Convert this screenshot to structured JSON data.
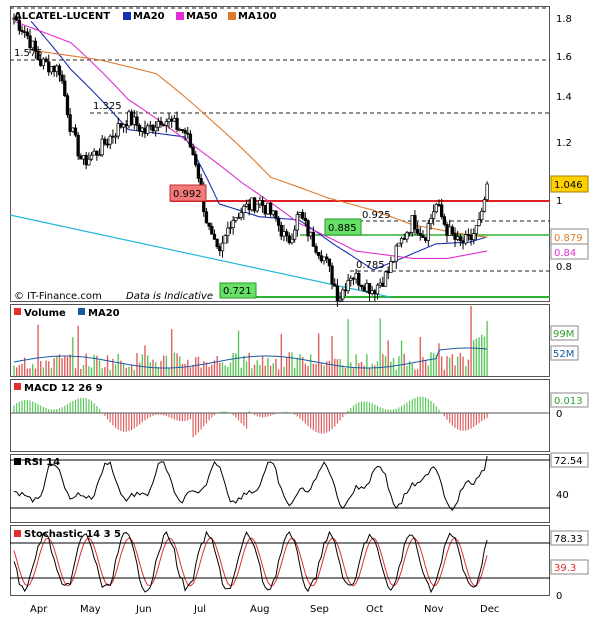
{
  "colors": {
    "ma20": "#1a2fb0",
    "ma50": "#e030d0",
    "ma100": "#e07a2a",
    "candle_up": "#ffffff",
    "candle_down": "#000000",
    "resistance": "#e02020",
    "support": "#30b030",
    "trendline": "#20b8d8",
    "volume_up": "#5ac85a",
    "volume_down": "#e06060",
    "stoch_k": "#000000",
    "stoch_d": "#e03030"
  },
  "main_panel": {
    "legend": {
      "ticker": "ALCATEL-LUCENT",
      "ma20": "MA20",
      "ma50": "MA50",
      "ma100": "MA100"
    },
    "watermark": "© IT-Finance.com",
    "disclaimer": "Data is Indicative",
    "y_ticks": [
      "1.8",
      "1.6",
      "1.4",
      "1.2",
      "1",
      "0.8"
    ],
    "annotations": {
      "level_1575": "1.575",
      "level_1325": "1.325",
      "level_0925": "0.925",
      "level_0785": "0.785",
      "box_0992": "0.992",
      "box_0885": "0.885",
      "box_0721": "0.721"
    },
    "right_labels": {
      "last": "1.046",
      "ma100": "0.879",
      "ma50": "0.84"
    }
  },
  "volume_panel": {
    "legend": {
      "volume": "Volume",
      "ma20": "MA20"
    },
    "right_labels": {
      "volume": "99M",
      "ma20": "52M"
    }
  },
  "macd_panel": {
    "legend": "MACD 12 26 9",
    "right_labels": {
      "value": "0.013",
      "zero": "0"
    }
  },
  "rsi_panel": {
    "legend": "RSI 14",
    "right_labels": {
      "value": "72.54",
      "mid": "40"
    }
  },
  "stoch_panel": {
    "legend": "Stochastic 14 3 5",
    "right_labels": {
      "k": "78.33",
      "d": "39.3",
      "zero": "0"
    }
  },
  "x_axis": {
    "months": [
      "Apr",
      "May",
      "Jun",
      "Jul",
      "Aug",
      "Sep",
      "Oct",
      "Nov",
      "Dec"
    ]
  },
  "chart_data": {
    "type": "candlestick",
    "title": "ALCATEL-LUCENT",
    "x_range": [
      "Apr",
      "Dec"
    ],
    "ylim": [
      0.64,
      1.86
    ],
    "y_scale": "log",
    "grid": false,
    "legend_position": "top-left",
    "price_anchors": {
      "x_month_index": [
        0.0,
        0.2,
        0.45,
        0.8,
        1.0,
        1.2,
        1.5,
        1.8,
        2.0,
        2.3,
        2.6,
        3.0,
        3.2,
        3.35,
        3.45,
        3.6,
        3.8,
        4.0,
        4.3,
        4.6,
        4.8,
        5.0,
        5.2,
        5.45,
        5.7,
        5.9,
        6.1,
        6.3,
        6.55,
        6.8,
        7.0,
        7.2,
        7.4,
        7.6,
        7.8,
        8.0,
        8.2,
        8.3
      ],
      "close": [
        1.8,
        1.72,
        1.56,
        1.52,
        1.25,
        1.12,
        1.17,
        1.25,
        1.3,
        1.24,
        1.3,
        1.24,
        1.12,
        0.95,
        0.88,
        0.82,
        0.93,
        0.96,
        0.99,
        0.93,
        0.86,
        0.95,
        0.88,
        0.82,
        0.72,
        0.78,
        0.76,
        0.74,
        0.78,
        0.87,
        0.93,
        0.88,
        0.98,
        0.9,
        0.86,
        0.87,
        0.93,
        1.046
      ]
    },
    "series": [
      {
        "name": "MA20",
        "anchors": [
          [
            0.3,
            1.78
          ],
          [
            1.0,
            1.52
          ],
          [
            2.0,
            1.25
          ],
          [
            3.0,
            1.22
          ],
          [
            3.6,
            0.98
          ],
          [
            4.3,
            0.94
          ],
          [
            5.0,
            0.93
          ],
          [
            5.6,
            0.86
          ],
          [
            6.3,
            0.79
          ],
          [
            6.8,
            0.82
          ],
          [
            7.4,
            0.86
          ],
          [
            8.0,
            0.865
          ],
          [
            8.3,
            0.88
          ]
        ]
      },
      {
        "name": "MA50",
        "anchors": [
          [
            0.0,
            1.78
          ],
          [
            1.0,
            1.66
          ],
          [
            2.0,
            1.38
          ],
          [
            3.0,
            1.21
          ],
          [
            4.0,
            1.05
          ],
          [
            5.0,
            0.92
          ],
          [
            6.0,
            0.84
          ],
          [
            7.0,
            0.82
          ],
          [
            7.6,
            0.82
          ],
          [
            8.3,
            0.84
          ]
        ]
      },
      {
        "name": "MA100",
        "anchors": [
          [
            0.3,
            1.62
          ],
          [
            1.5,
            1.57
          ],
          [
            2.5,
            1.5
          ],
          [
            3.5,
            1.28
          ],
          [
            4.5,
            1.07
          ],
          [
            5.5,
            1.0
          ],
          [
            6.3,
            0.96
          ],
          [
            7.0,
            0.915
          ],
          [
            7.8,
            0.89
          ],
          [
            8.3,
            0.879
          ]
        ]
      }
    ],
    "horizontal_levels": [
      1.575,
      1.325,
      0.992,
      0.925,
      0.885,
      0.785,
      0.721
    ],
    "volume": {
      "last": "99M",
      "ma20_last": "52M"
    },
    "macd": {
      "params": [
        12,
        26,
        9
      ],
      "last": 0.013
    },
    "rsi": {
      "period": 14,
      "last": 72.54,
      "reference": 40
    },
    "stochastic": {
      "params": [
        14,
        3,
        5
      ],
      "k_last": 78.33,
      "d_last": 39.3
    }
  }
}
